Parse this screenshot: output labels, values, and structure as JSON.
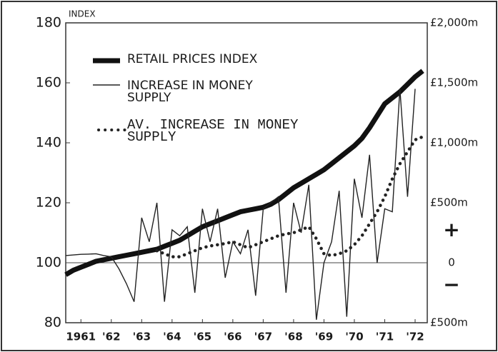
{
  "chart_data": {
    "type": "line",
    "y_axis_label": "INDEX",
    "annotations": [
      "+",
      "−"
    ],
    "x": [
      1960.5,
      1960.75,
      1961,
      1961.25,
      1961.5,
      1961.75,
      1962,
      1962.25,
      1962.5,
      1962.75,
      1963,
      1963.25,
      1963.5,
      1963.75,
      1964,
      1964.25,
      1964.5,
      1964.75,
      1965,
      1965.25,
      1965.5,
      1965.75,
      1966,
      1966.25,
      1966.5,
      1966.75,
      1967,
      1967.25,
      1967.5,
      1967.75,
      1968,
      1968.25,
      1968.5,
      1968.75,
      1969,
      1969.25,
      1969.5,
      1969.75,
      1970,
      1970.25,
      1970.5,
      1970.75,
      1971,
      1971.25,
      1971.5,
      1971.75,
      1972,
      1972.25
    ],
    "xlim": [
      1960.5,
      1972.4
    ],
    "xticks": [
      {
        "value": 1961,
        "label": "1961"
      },
      {
        "value": 1962,
        "label": "'62"
      },
      {
        "value": 1963,
        "label": "'63"
      },
      {
        "value": 1964,
        "label": "'64"
      },
      {
        "value": 1965,
        "label": "'65"
      },
      {
        "value": 1966,
        "label": "'66"
      },
      {
        "value": 1967,
        "label": "'67"
      },
      {
        "value": 1968,
        "label": "'68"
      },
      {
        "value": 1969,
        "label": "'69"
      },
      {
        "value": 1970,
        "label": "'70"
      },
      {
        "value": 1971,
        "label": "'71"
      },
      {
        "value": 1972,
        "label": "'72"
      }
    ],
    "ylim": [
      80,
      180
    ],
    "yticks": [
      80,
      100,
      120,
      140,
      160,
      180
    ],
    "y2lim": [
      -500,
      2000
    ],
    "y2ticks": [
      {
        "value": -500,
        "label": "£500m"
      },
      0,
      {
        "value": 500,
        "label": "£500m"
      },
      {
        "value": 1000,
        "label": "£1,000m"
      },
      {
        "value": 1500,
        "label": "£1,500m"
      },
      {
        "value": 2000,
        "label": "£2,000m"
      }
    ],
    "series": [
      {
        "name": "RETAIL PRICES INDEX",
        "color": "#111111",
        "style": "thick",
        "values": [
          96,
          97.5,
          98.5,
          99.5,
          100.5,
          101,
          101.5,
          102,
          102.5,
          103,
          103.5,
          104,
          104.5,
          105.5,
          106.5,
          107.5,
          109,
          110.5,
          112,
          113,
          114,
          115,
          116,
          117,
          117.5,
          118,
          118.5,
          119.5,
          121,
          123,
          125,
          126.5,
          128,
          129.5,
          131,
          133,
          135,
          137,
          139,
          141.5,
          145,
          149,
          153,
          155,
          157,
          159.5,
          162,
          164
        ]
      },
      {
        "name": "INCREASE IN MONEY SUPPLY",
        "color": "#222222",
        "style": "thin",
        "axis": "y2",
        "values": [
          60,
          65,
          70,
          72,
          75,
          60,
          50,
          -50,
          -175,
          -325,
          375,
          175,
          500,
          -325,
          275,
          225,
          300,
          -250,
          450,
          175,
          450,
          -125,
          175,
          75,
          275,
          -275,
          450,
          500,
          550,
          -250,
          500,
          250,
          650,
          -475,
          0,
          175,
          600,
          -450,
          700,
          375,
          900,
          0,
          450,
          425,
          1450,
          550,
          1450,
          null
        ]
      },
      {
        "name": "AV. INCREASE IN MONEY SUPPLY",
        "color": "#222222",
        "style": "dotted",
        "axis": "y2",
        "values": [
          null,
          null,
          null,
          null,
          null,
          null,
          null,
          null,
          null,
          null,
          null,
          null,
          100,
          75,
          50,
          50,
          75,
          100,
          125,
          140,
          150,
          160,
          175,
          150,
          125,
          150,
          175,
          200,
          225,
          240,
          250,
          275,
          300,
          200,
          75,
          60,
          75,
          100,
          150,
          225,
          325,
          425,
          550,
          700,
          825,
          925,
          1025,
          1050
        ]
      }
    ]
  }
}
